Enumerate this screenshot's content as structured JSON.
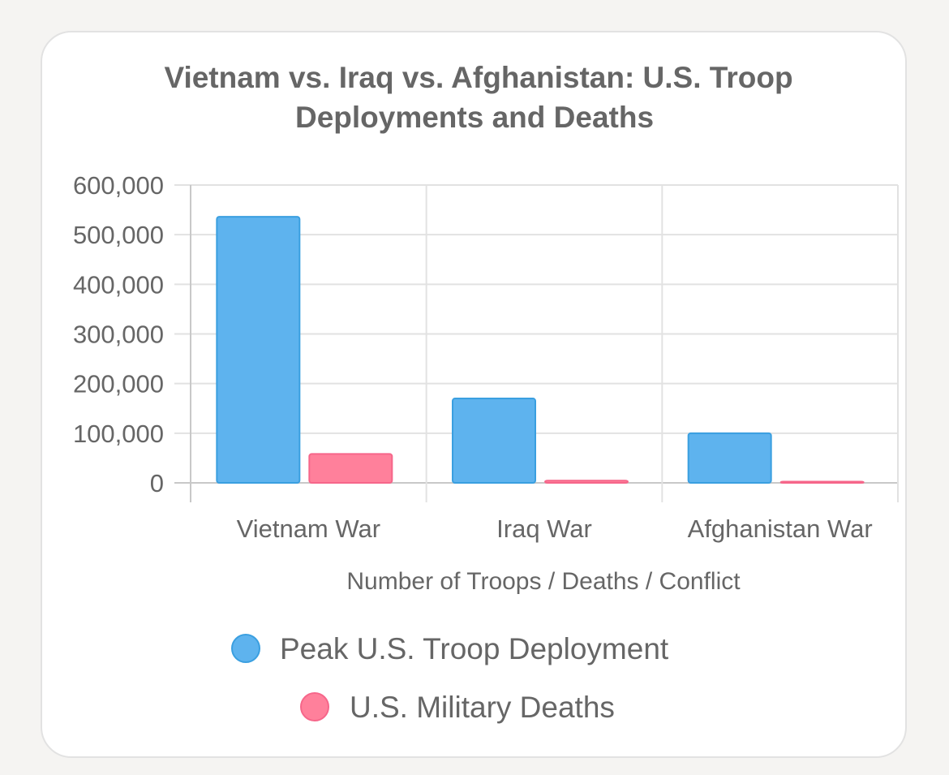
{
  "chart_data": {
    "type": "bar",
    "title_lines": [
      "Vietnam vs. Iraq vs. Afghanistan: U.S. Troop",
      "Deployments and Deaths"
    ],
    "categories": [
      "Vietnam War",
      "Iraq War",
      "Afghanistan War"
    ],
    "series": [
      {
        "name": "Peak U.S. Troop Deployment",
        "values": [
          536100,
          170000,
          100000
        ],
        "color": "#5eb3ee",
        "border_color": "#3a9fe0"
      },
      {
        "name": "U.S. Military Deaths",
        "values": [
          58220,
          4431,
          2461
        ],
        "color": "#ff809b",
        "border_color": "#f6668a"
      }
    ],
    "xlabel": "Number of Troops / Deaths / Conflict",
    "ylabel": "",
    "ylim": [
      0,
      600000
    ],
    "yticks": [
      0,
      100000,
      200000,
      300000,
      400000,
      500000,
      600000
    ],
    "ytick_labels": [
      "0",
      "100,000",
      "200,000",
      "300,000",
      "400,000",
      "500,000",
      "600,000"
    ],
    "grid": true,
    "legend_position": "bottom"
  }
}
